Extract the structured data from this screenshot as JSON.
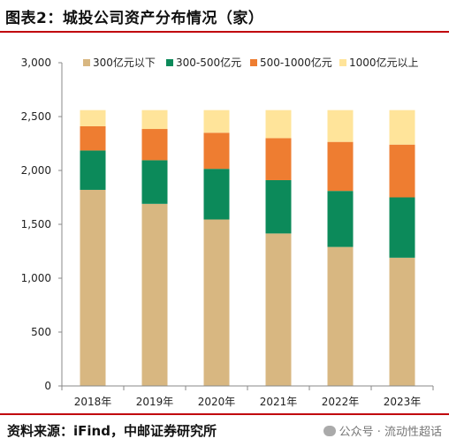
{
  "header": {
    "title": "图表2：城投公司资产分布情况（家）"
  },
  "footer": {
    "source": "资料来源：iFind，中邮证券研究所",
    "watermark": "公众号 · 流动性超话"
  },
  "chart_data": {
    "type": "bar",
    "stacked": true,
    "categories": [
      "2018年",
      "2019年",
      "2020年",
      "2021年",
      "2022年",
      "2023年"
    ],
    "series": [
      {
        "name": "300亿元以下",
        "color": "#d8b781",
        "values": [
          1820,
          1690,
          1545,
          1415,
          1290,
          1190
        ]
      },
      {
        "name": "300-500亿元",
        "color": "#0c8a5a",
        "values": [
          365,
          405,
          470,
          495,
          520,
          560
        ]
      },
      {
        "name": "500-1000亿元",
        "color": "#ee7d31",
        "values": [
          225,
          290,
          335,
          390,
          455,
          490
        ]
      },
      {
        "name": "1000亿元以上",
        "color": "#ffe49a",
        "values": [
          150,
          175,
          210,
          260,
          295,
          320
        ]
      }
    ],
    "yticks": [
      "0",
      "500",
      "1,000",
      "1,500",
      "2,000",
      "2,500",
      "3,000"
    ],
    "ylim": [
      0,
      3000
    ],
    "legend_position": "top",
    "grid": false
  }
}
